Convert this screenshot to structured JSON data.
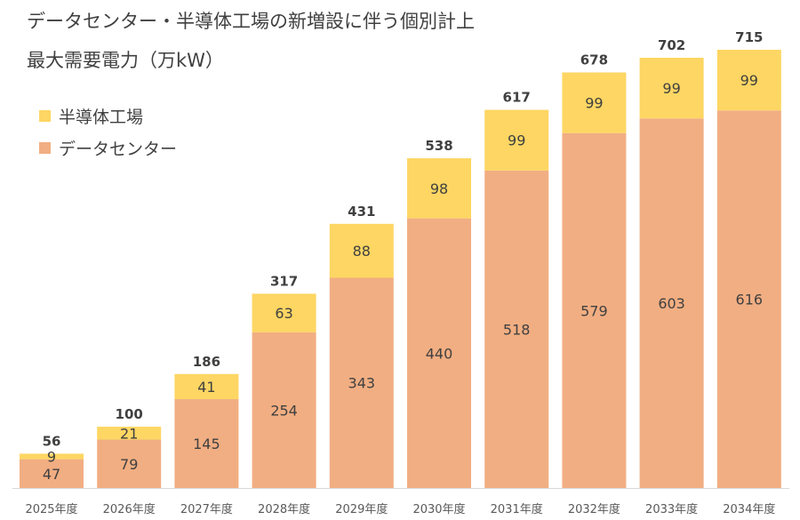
{
  "title_line1": "データセンター・半導体工場の新増設に伴う個別計上",
  "title_line2": "最大需要電力（万kW）",
  "chart_data": {
    "type": "bar",
    "stacked": true,
    "categories": [
      "2025年度",
      "2026年度",
      "2027年度",
      "2028年度",
      "2029年度",
      "2030年度",
      "2031年度",
      "2032年度",
      "2033年度",
      "2034年度"
    ],
    "series": [
      {
        "name": "データセンター",
        "color": "#F1AE82",
        "values": [
          47,
          79,
          145,
          254,
          343,
          440,
          518,
          579,
          603,
          616
        ]
      },
      {
        "name": "半導体工場",
        "color": "#FDD663",
        "values": [
          9,
          21,
          41,
          63,
          88,
          98,
          99,
          99,
          99,
          99
        ]
      }
    ],
    "totals": [
      56,
      100,
      186,
      317,
      431,
      538,
      617,
      678,
      702,
      715
    ],
    "legend_order": [
      "半導体工場",
      "データセンター"
    ],
    "legend_position": "top-left",
    "ylim": [
      0,
      715
    ],
    "grid": false
  }
}
